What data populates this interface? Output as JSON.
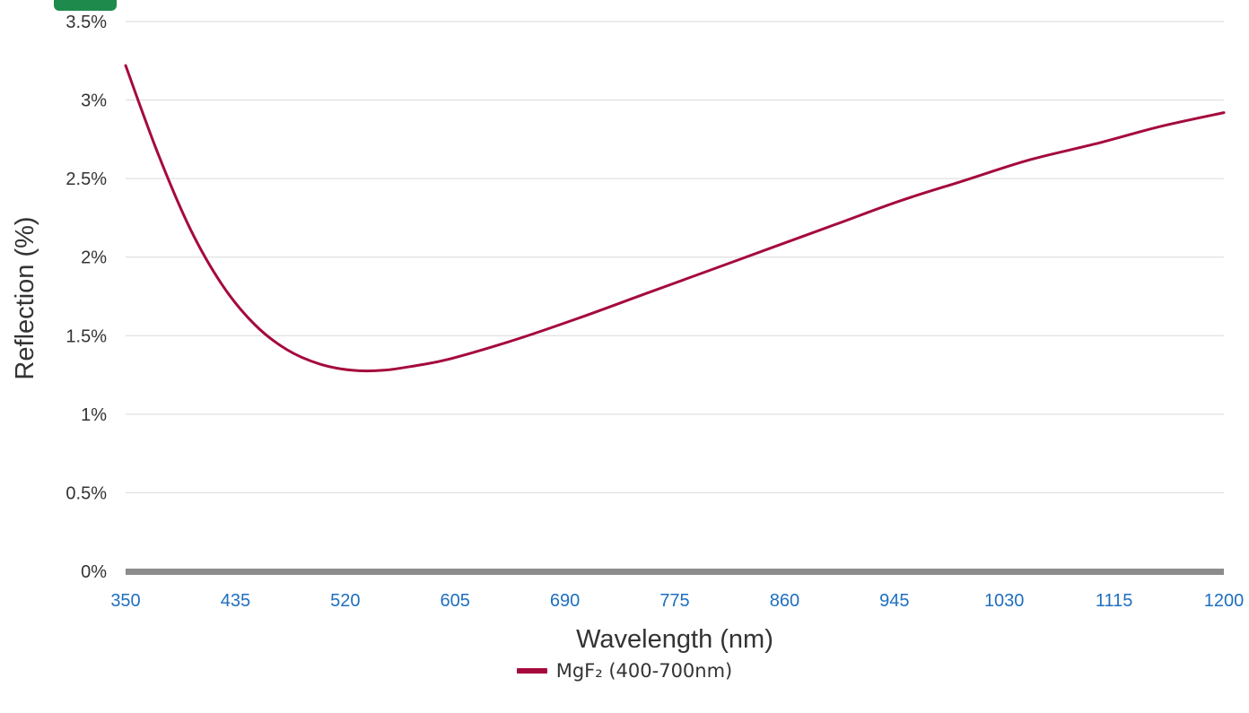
{
  "chart_data": {
    "type": "line",
    "xlabel": "Wavelength (nm)",
    "ylabel": "Reflection (%)",
    "xlim": [
      350,
      1200
    ],
    "ylim": [
      0,
      3.5
    ],
    "x_ticks": [
      "350",
      "435",
      "520",
      "605",
      "690",
      "775",
      "860",
      "945",
      "1030",
      "1115",
      "1200"
    ],
    "y_ticks": [
      "0%",
      "0.5%",
      "1%",
      "1.5%",
      "2%",
      "2.5%",
      "3%",
      "3.5%"
    ],
    "grid": "horizontal",
    "legend_position": "bottom",
    "series": [
      {
        "name": "MgF₂ (400-700nm)",
        "color": "#a50a3c",
        "x": [
          350,
          375,
          400,
          425,
          450,
          475,
          500,
          525,
          550,
          575,
          600,
          650,
          700,
          750,
          800,
          850,
          900,
          950,
          1000,
          1050,
          1100,
          1150,
          1200
        ],
        "y": [
          3.22,
          2.66,
          2.18,
          1.82,
          1.57,
          1.41,
          1.32,
          1.28,
          1.28,
          1.31,
          1.35,
          1.47,
          1.61,
          1.76,
          1.91,
          2.06,
          2.21,
          2.36,
          2.49,
          2.62,
          2.72,
          2.83,
          2.92
        ]
      }
    ]
  },
  "colors": {
    "baseline": "#8c8c8c",
    "grid": "#d9d9d9",
    "x_tick_text": "#1f6fbf"
  }
}
